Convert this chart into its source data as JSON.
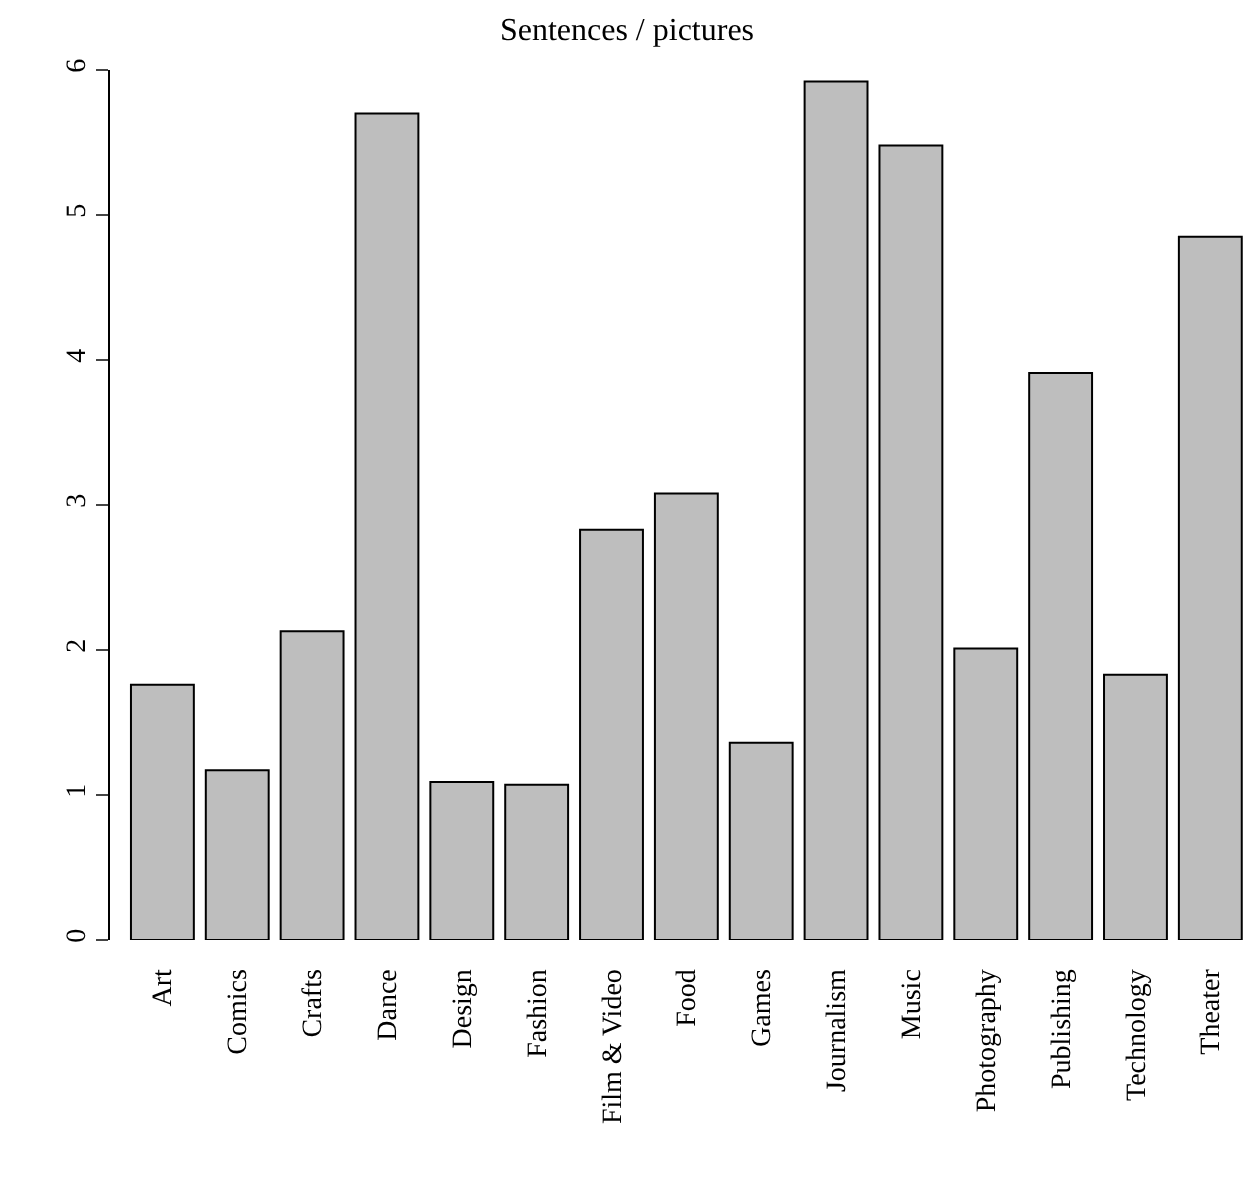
{
  "chart_data": {
    "type": "bar",
    "title": "Sentences / pictures",
    "categories": [
      "Art",
      "Comics",
      "Crafts",
      "Dance",
      "Design",
      "Fashion",
      "Film & Video",
      "Food",
      "Games",
      "Journalism",
      "Music",
      "Photography",
      "Publishing",
      "Technology",
      "Theater"
    ],
    "values": [
      1.76,
      1.17,
      2.13,
      5.7,
      1.09,
      1.07,
      2.83,
      3.08,
      1.36,
      5.92,
      5.48,
      2.01,
      3.91,
      1.83,
      4.85
    ],
    "color": "#bebebe",
    "ylim": [
      0,
      6
    ],
    "yticks": [
      0,
      1,
      2,
      3,
      4,
      5,
      6
    ]
  }
}
